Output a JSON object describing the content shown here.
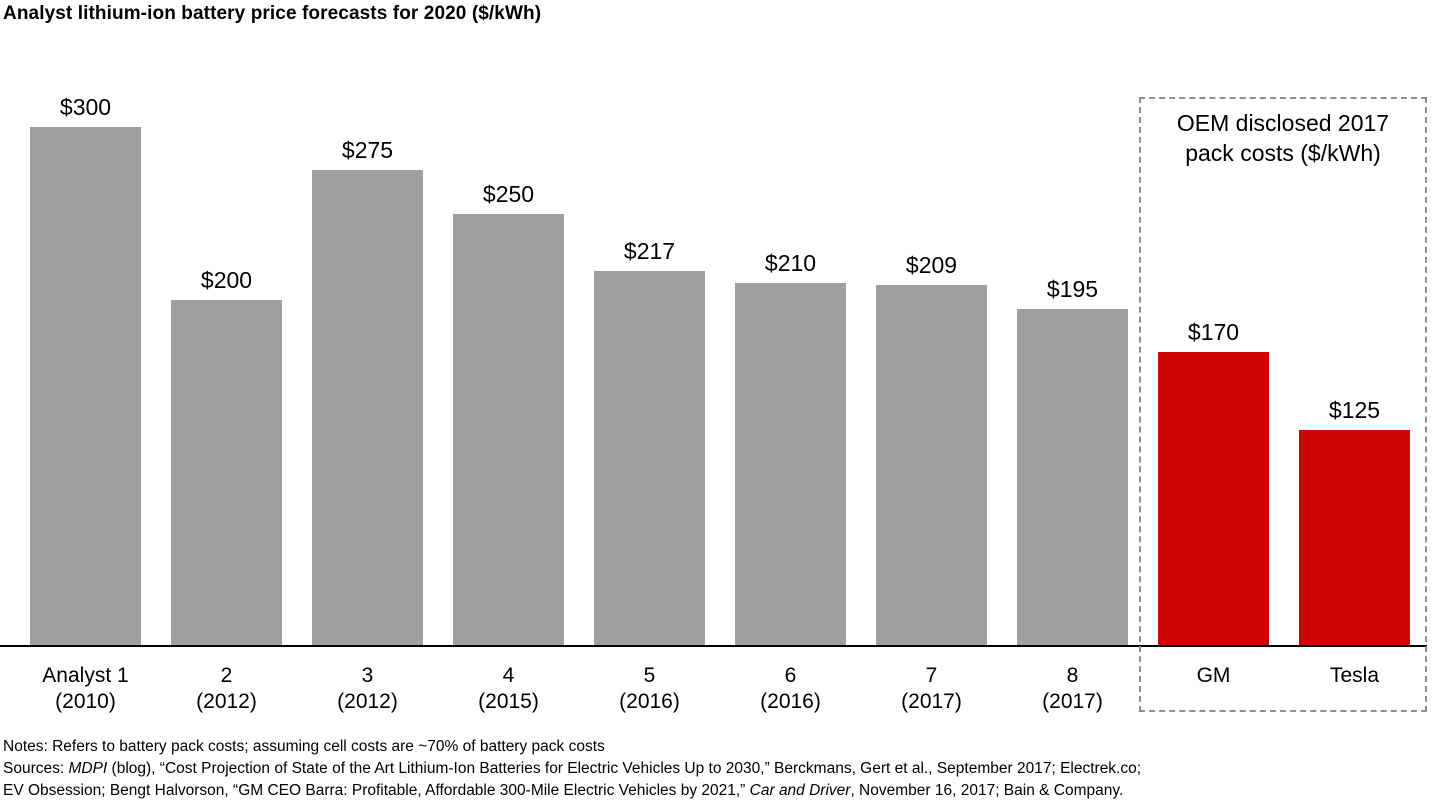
{
  "title": "Analyst lithium-ion battery price forecasts for 2020 ($/kWh)",
  "chart_data": {
    "type": "bar",
    "title": "Analyst lithium-ion battery price forecasts for 2020 ($/kWh)",
    "xlabel": "",
    "ylabel": "$/kWh",
    "ylim": [
      0,
      330
    ],
    "grid": false,
    "legend": "none",
    "colors": {
      "analyst": "#9f9f9f",
      "oem": "#cc0505"
    },
    "bars": [
      {
        "label": "Analyst 1",
        "sublabel": "(2010)",
        "value": 300,
        "value_label": "$300",
        "group": "analyst"
      },
      {
        "label": "2",
        "sublabel": "(2012)",
        "value": 200,
        "value_label": "$200",
        "group": "analyst"
      },
      {
        "label": "3",
        "sublabel": "(2012)",
        "value": 275,
        "value_label": "$275",
        "group": "analyst"
      },
      {
        "label": "4",
        "sublabel": "(2015)",
        "value": 250,
        "value_label": "$250",
        "group": "analyst"
      },
      {
        "label": "5",
        "sublabel": "(2016)",
        "value": 217,
        "value_label": "$217",
        "group": "analyst"
      },
      {
        "label": "6",
        "sublabel": "(2016)",
        "value": 210,
        "value_label": "$210",
        "group": "analyst"
      },
      {
        "label": "7",
        "sublabel": "(2017)",
        "value": 209,
        "value_label": "$209",
        "group": "analyst"
      },
      {
        "label": "8",
        "sublabel": "(2017)",
        "value": 195,
        "value_label": "$195",
        "group": "analyst"
      },
      {
        "label": "GM",
        "sublabel": "",
        "value": 170,
        "value_label": "$170",
        "group": "oem"
      },
      {
        "label": "Tesla",
        "sublabel": "",
        "value": 125,
        "value_label": "$125",
        "group": "oem"
      }
    ],
    "annotation_box": {
      "text_line1": "OEM disclosed 2017",
      "text_line2": "pack costs ($/kWh)",
      "encloses": [
        "GM",
        "Tesla"
      ]
    }
  },
  "footer": {
    "notes": "Notes: Refers to battery pack costs; assuming cell costs are ~70% of battery pack costs",
    "sources_line1": [
      {
        "text": "Sources: ",
        "italic": false
      },
      {
        "text": "MDPI",
        "italic": true
      },
      {
        "text": " (blog), “Cost Projection of State of the Art Lithium-Ion Batteries for Electric Vehicles Up to 2030,” Berckmans, Gert et al., September 2017; Electrek.co;",
        "italic": false
      }
    ],
    "sources_line2": [
      {
        "text": "EV Obsession; Bengt Halvorson, “GM CEO Barra: Profitable, Affordable 300-Mile Electric Vehicles by 2021,” ",
        "italic": false
      },
      {
        "text": "Car and Driver",
        "italic": true
      },
      {
        "text": ", November 16, 2017; Bain & Company.",
        "italic": false
      }
    ]
  }
}
